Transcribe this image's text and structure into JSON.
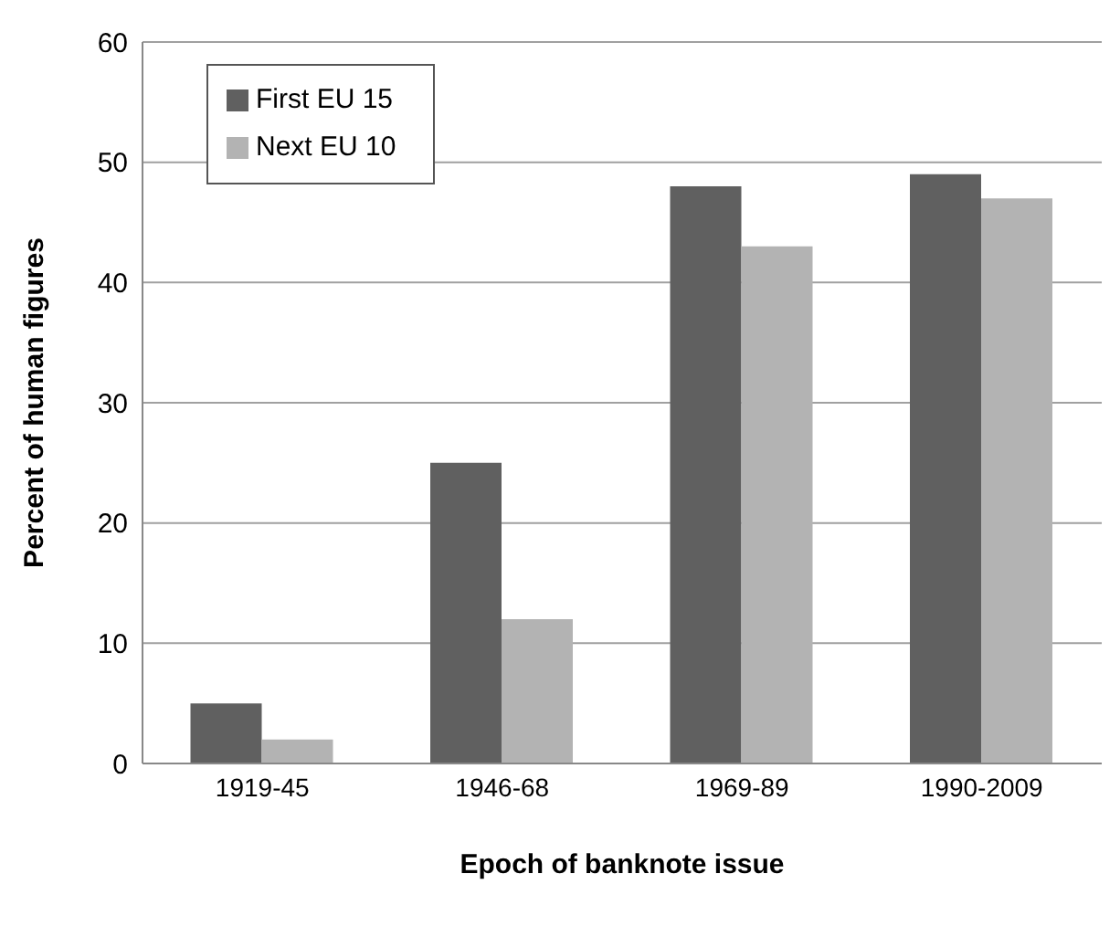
{
  "chart_data": {
    "type": "bar",
    "xlabel": "Epoch of banknote issue",
    "ylabel": "Percent of human figures",
    "categories": [
      "1919-45",
      "1946-68",
      "1969-89",
      "1990-2009"
    ],
    "series": [
      {
        "name": "First EU 15",
        "color": "#606060",
        "values": [
          5,
          25,
          48,
          49
        ]
      },
      {
        "name": "Next EU 10",
        "color": "#b3b3b3",
        "values": [
          2,
          12,
          43,
          47
        ]
      }
    ],
    "ylim": [
      0,
      60
    ],
    "yticks": [
      0,
      10,
      20,
      30,
      40,
      50,
      60
    ],
    "grid": "y",
    "legend": "top left"
  }
}
